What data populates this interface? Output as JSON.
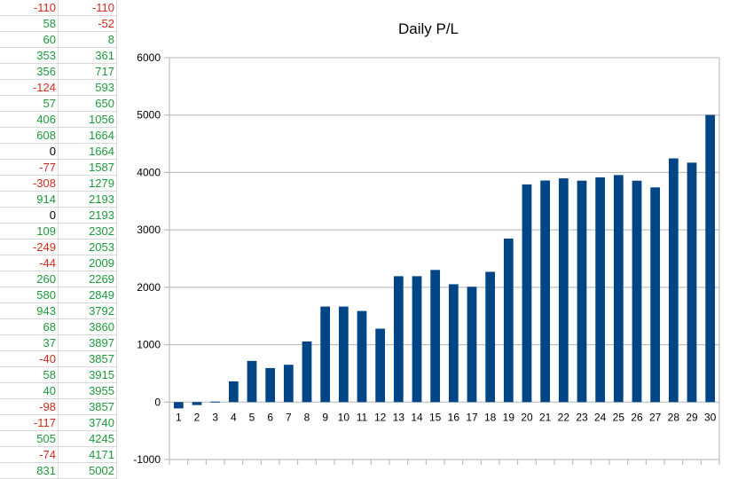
{
  "sheet": {
    "rows": [
      [
        -110,
        -110
      ],
      [
        58,
        -52
      ],
      [
        60,
        8
      ],
      [
        353,
        361
      ],
      [
        356,
        717
      ],
      [
        -124,
        593
      ],
      [
        57,
        650
      ],
      [
        406,
        1056
      ],
      [
        608,
        1664
      ],
      [
        0,
        1664
      ],
      [
        -77,
        1587
      ],
      [
        -308,
        1279
      ],
      [
        914,
        2193
      ],
      [
        0,
        2193
      ],
      [
        109,
        2302
      ],
      [
        -249,
        2053
      ],
      [
        -44,
        2009
      ],
      [
        260,
        2269
      ],
      [
        580,
        2849
      ],
      [
        943,
        3792
      ],
      [
        68,
        3860
      ],
      [
        37,
        3897
      ],
      [
        -40,
        3857
      ],
      [
        58,
        3915
      ],
      [
        40,
        3955
      ],
      [
        -98,
        3857
      ],
      [
        -117,
        3740
      ],
      [
        505,
        4245
      ],
      [
        -74,
        4171
      ],
      [
        831,
        5002
      ]
    ],
    "colors": {
      "positive": "#1e9a3c",
      "negative": "#d42a1e",
      "zero": "#000000"
    }
  },
  "chart_data": {
    "type": "bar",
    "title": "Daily P/L",
    "categories": [
      "1",
      "2",
      "3",
      "4",
      "5",
      "6",
      "7",
      "8",
      "9",
      "10",
      "11",
      "12",
      "13",
      "14",
      "15",
      "16",
      "17",
      "18",
      "19",
      "20",
      "21",
      "22",
      "23",
      "24",
      "25",
      "26",
      "27",
      "28",
      "29",
      "30"
    ],
    "values": [
      -110,
      -52,
      8,
      361,
      717,
      593,
      650,
      1056,
      1664,
      1664,
      1587,
      1279,
      2193,
      2193,
      2302,
      2053,
      2009,
      2269,
      2849,
      3792,
      3860,
      3897,
      3857,
      3915,
      3955,
      3857,
      3740,
      4245,
      4171,
      5002
    ],
    "xlabel": "",
    "ylabel": "",
    "ylim": [
      -1000,
      6000
    ],
    "yticks": [
      -1000,
      0,
      1000,
      2000,
      3000,
      4000,
      5000,
      6000
    ],
    "grid": true,
    "legend": "none",
    "bar_color": "#004586",
    "grid_color": "#b3b3b3"
  }
}
